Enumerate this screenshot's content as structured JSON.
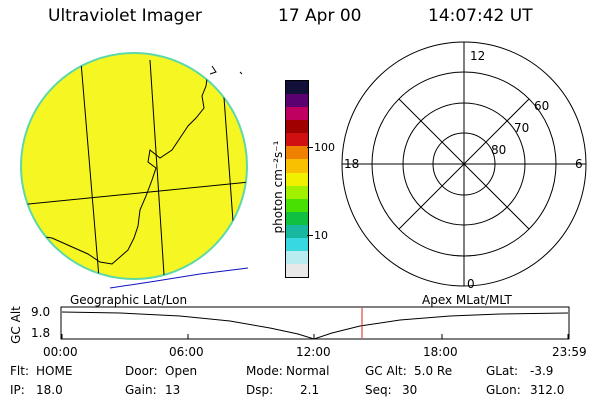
{
  "header": {
    "title": "Ultraviolet Imager",
    "date": "17 Apr 00",
    "time": "14:07:42 UT"
  },
  "colorbar": {
    "unit_label": "photon cm⁻²s⁻¹",
    "tick_high": "100",
    "tick_low": "10",
    "colors": [
      "#e8e8e8",
      "#b8ecf0",
      "#38d8e0",
      "#18b8a0",
      "#10c040",
      "#48e000",
      "#a0f000",
      "#f0f000",
      "#f8c000",
      "#f08000",
      "#d01010",
      "#a00000",
      "#c00060",
      "#5a0070",
      "#101038"
    ]
  },
  "polar_plot": {
    "mlt_labels": {
      "top": "12",
      "left": "18",
      "right": "6",
      "bottom": "0"
    },
    "lat_labels": [
      "60",
      "70",
      "80"
    ]
  },
  "globe": {
    "fill_color": "#f6f622",
    "edge_color": "#5fd8a8"
  },
  "timeline": {
    "left_label": "Geographic Lat/Lon",
    "right_label": "Apex MLat/MLT",
    "axis_title": "GC Alt",
    "y_ticks": [
      "9.0",
      "1.8"
    ],
    "x_ticks": [
      "00:00",
      "06:00",
      "12:00",
      "18:00",
      "23:59"
    ],
    "marker_color": "#d82020"
  },
  "status": {
    "row1": [
      {
        "label": "Flt:",
        "value": "HOME"
      },
      {
        "label": "Door:",
        "value": "Open"
      },
      {
        "label": "Mode:",
        "value": "Normal"
      },
      {
        "label": "GC Alt:",
        "value": "5.0 Re"
      },
      {
        "label": "GLat:",
        "value": "-3.9"
      }
    ],
    "row2": [
      {
        "label": "IP:",
        "value": "18.0"
      },
      {
        "label": "Gain:",
        "value": "13"
      },
      {
        "label": "Dsp:",
        "value": "2.1"
      },
      {
        "label": "Seq:",
        "value": "30"
      },
      {
        "label": "GLon:",
        "value": "312.0"
      }
    ]
  }
}
